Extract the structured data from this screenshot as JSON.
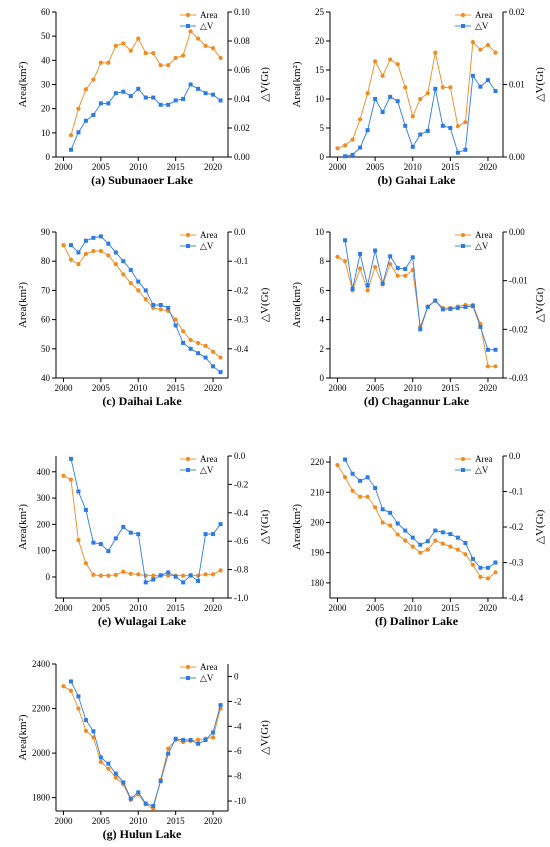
{
  "colors": {
    "area": "#F28A1F",
    "dv": "#2C7BE5",
    "axis": "#000000"
  },
  "chart_data": [
    {
      "type": "line",
      "title": "(a) Subunaoer Lake",
      "ylabel_left": "Area(km²)",
      "ylabel_right": "△V(Gt)",
      "xlim": [
        1999,
        2022
      ],
      "xticks": [
        2000,
        2005,
        2010,
        2015,
        2020
      ],
      "ylim_left": [
        0,
        60
      ],
      "yticks_left": [
        0,
        10,
        20,
        30,
        40,
        50,
        60
      ],
      "ylim_right": [
        0,
        0.1
      ],
      "yticks_right": [
        0.0,
        0.02,
        0.04,
        0.06,
        0.08,
        0.1
      ],
      "tick_decimals_right": 2,
      "legend": [
        "Area",
        "△V"
      ],
      "series": [
        {
          "name": "Area",
          "axis": "left",
          "x": [
            2001,
            2002,
            2003,
            2004,
            2005,
            2006,
            2007,
            2008,
            2009,
            2010,
            2011,
            2012,
            2013,
            2014,
            2015,
            2016,
            2017,
            2018,
            2019,
            2020,
            2021
          ],
          "values": [
            9,
            20,
            28,
            32,
            39,
            39,
            46,
            47,
            44,
            49,
            43,
            43,
            38,
            38,
            41,
            42,
            52,
            49,
            46,
            45,
            41
          ]
        },
        {
          "name": "△V",
          "axis": "right",
          "x": [
            2001,
            2002,
            2003,
            2004,
            2005,
            2006,
            2007,
            2008,
            2009,
            2010,
            2011,
            2012,
            2013,
            2014,
            2015,
            2016,
            2017,
            2018,
            2019,
            2020,
            2021
          ],
          "values": [
            0.005,
            0.017,
            0.025,
            0.029,
            0.037,
            0.037,
            0.044,
            0.045,
            0.042,
            0.047,
            0.041,
            0.041,
            0.036,
            0.036,
            0.039,
            0.04,
            0.05,
            0.047,
            0.044,
            0.043,
            0.039
          ]
        }
      ]
    },
    {
      "type": "line",
      "title": "(b) Gahai Lake",
      "ylabel_left": "Area(km²)",
      "ylabel_right": "△V(Gt)",
      "xlim": [
        1999,
        2022
      ],
      "xticks": [
        2000,
        2005,
        2010,
        2015,
        2020
      ],
      "ylim_left": [
        0,
        25
      ],
      "yticks_left": [
        0,
        5,
        10,
        15,
        20,
        25
      ],
      "ylim_right": [
        0,
        0.02
      ],
      "yticks_right": [
        0.0,
        0.01,
        0.02
      ],
      "tick_decimals_right": 2,
      "legend": [
        "Area",
        "△V"
      ],
      "series": [
        {
          "name": "Area",
          "axis": "left",
          "x": [
            2000,
            2001,
            2002,
            2003,
            2004,
            2005,
            2006,
            2007,
            2008,
            2009,
            2010,
            2011,
            2012,
            2013,
            2014,
            2015,
            2016,
            2017,
            2018,
            2019,
            2020,
            2021
          ],
          "values": [
            1.5,
            2,
            3,
            6.5,
            11,
            16.5,
            14,
            16.8,
            16,
            12,
            7,
            10,
            11,
            18,
            12,
            12,
            5.3,
            6,
            19.8,
            18.5,
            19.3,
            18
          ]
        },
        {
          "name": "△V",
          "axis": "right",
          "x": [
            2001,
            2002,
            2003,
            2004,
            2005,
            2006,
            2007,
            2008,
            2009,
            2010,
            2011,
            2012,
            2013,
            2014,
            2015,
            2016,
            2017,
            2018,
            2019,
            2020,
            2021
          ],
          "values": [
            0.0001,
            0.0003,
            0.0013,
            0.0037,
            0.008,
            0.0062,
            0.0083,
            0.0077,
            0.0043,
            0.0014,
            0.0031,
            0.0036,
            0.0094,
            0.0043,
            0.004,
            0.0006,
            0.001,
            0.0112,
            0.0097,
            0.0106,
            0.0091
          ]
        }
      ]
    },
    {
      "type": "line",
      "title": "(c) Daihai Lake",
      "ylabel_left": "Area(km²)",
      "ylabel_right": "△V(Gt)",
      "xlim": [
        1999,
        2022
      ],
      "xticks": [
        2000,
        2005,
        2010,
        2015,
        2020
      ],
      "ylim_left": [
        40,
        90
      ],
      "yticks_left": [
        40,
        50,
        60,
        70,
        80,
        90
      ],
      "ylim_right": [
        -0.5,
        0.0
      ],
      "yticks_right": [
        -0.4,
        -0.3,
        -0.2,
        -0.1,
        0.0
      ],
      "tick_decimals_right": 1,
      "legend": [
        "Area",
        "△V"
      ],
      "series": [
        {
          "name": "Area",
          "axis": "left",
          "x": [
            2000,
            2001,
            2002,
            2003,
            2004,
            2005,
            2006,
            2007,
            2008,
            2009,
            2010,
            2011,
            2012,
            2013,
            2014,
            2015,
            2016,
            2017,
            2018,
            2019,
            2020,
            2021
          ],
          "values": [
            85.5,
            80.5,
            79,
            82.5,
            83.5,
            83.5,
            82,
            79,
            75.5,
            72.5,
            70,
            67,
            64,
            63.5,
            63,
            60,
            56,
            53,
            52,
            51,
            49,
            47
          ]
        },
        {
          "name": "△V",
          "axis": "right",
          "x": [
            2001,
            2002,
            2003,
            2004,
            2005,
            2006,
            2007,
            2008,
            2009,
            2010,
            2011,
            2012,
            2013,
            2014,
            2015,
            2016,
            2017,
            2018,
            2019,
            2020,
            2021
          ],
          "values": [
            -0.045,
            -0.07,
            -0.03,
            -0.02,
            -0.015,
            -0.04,
            -0.07,
            -0.1,
            -0.13,
            -0.17,
            -0.2,
            -0.25,
            -0.25,
            -0.26,
            -0.32,
            -0.38,
            -0.4,
            -0.415,
            -0.43,
            -0.46,
            -0.48
          ]
        }
      ]
    },
    {
      "type": "line",
      "title": "(d) Chagannur Lake",
      "ylabel_left": "Area(km²)",
      "ylabel_right": "△V(Gt)",
      "xlim": [
        1999,
        2022
      ],
      "xticks": [
        2000,
        2005,
        2010,
        2015,
        2020
      ],
      "ylim_left": [
        0,
        10
      ],
      "yticks_left": [
        0,
        2,
        4,
        6,
        8,
        10
      ],
      "ylim_right": [
        -0.03,
        0.0
      ],
      "yticks_right": [
        -0.03,
        -0.02,
        -0.01,
        0.0
      ],
      "tick_decimals_right": 2,
      "legend": [
        "Area",
        "△V"
      ],
      "series": [
        {
          "name": "Area",
          "axis": "left",
          "x": [
            2000,
            2001,
            2002,
            2003,
            2004,
            2005,
            2006,
            2007,
            2008,
            2009,
            2010,
            2011,
            2012,
            2013,
            2014,
            2015,
            2016,
            2017,
            2018,
            2019,
            2020,
            2021
          ],
          "values": [
            8.3,
            8,
            6,
            7.5,
            6,
            7.6,
            6.4,
            7.8,
            7,
            7,
            7.4,
            3.5,
            4.9,
            5.3,
            4.8,
            4.8,
            4.9,
            5,
            5,
            3.7,
            0.8,
            0.8
          ]
        },
        {
          "name": "△V",
          "axis": "right",
          "x": [
            2001,
            2002,
            2003,
            2004,
            2005,
            2006,
            2007,
            2008,
            2009,
            2010,
            2011,
            2012,
            2013,
            2014,
            2015,
            2016,
            2017,
            2018,
            2019,
            2020,
            2021
          ],
          "values": [
            -0.0017,
            -0.0117,
            -0.0045,
            -0.011,
            -0.0038,
            -0.0106,
            -0.005,
            -0.0074,
            -0.0076,
            -0.0052,
            -0.02,
            -0.0154,
            -0.0141,
            -0.0159,
            -0.0158,
            -0.0156,
            -0.0154,
            -0.0152,
            -0.0195,
            -0.0242,
            -0.0242
          ]
        }
      ]
    },
    {
      "type": "line",
      "title": "(e) Wulagai Lake",
      "ylabel_left": "Area(km²)",
      "ylabel_right": "△V(Gt)",
      "xlim": [
        1999,
        2022
      ],
      "xticks": [
        2000,
        2005,
        2010,
        2015,
        2020
      ],
      "ylim_left": [
        -80,
        460
      ],
      "yticks_left": [
        0,
        100,
        200,
        300,
        400
      ],
      "ylim_right": [
        -1.0,
        0.0
      ],
      "yticks_right": [
        -1.0,
        -0.8,
        -0.6,
        -0.4,
        -0.2,
        0.0
      ],
      "tick_decimals_right": 1,
      "legend": [
        "Area",
        "△V"
      ],
      "series": [
        {
          "name": "Area",
          "axis": "left",
          "x": [
            2000,
            2001,
            2002,
            2003,
            2004,
            2005,
            2006,
            2007,
            2008,
            2009,
            2010,
            2011,
            2012,
            2013,
            2014,
            2015,
            2016,
            2017,
            2018,
            2019,
            2020,
            2021
          ],
          "values": [
            385,
            370,
            140,
            52,
            8,
            5,
            5,
            8,
            20,
            12,
            10,
            5,
            5,
            5,
            5,
            5,
            5,
            5,
            5,
            10,
            10,
            25
          ]
        },
        {
          "name": "△V",
          "axis": "right",
          "x": [
            2001,
            2002,
            2003,
            2004,
            2005,
            2006,
            2007,
            2008,
            2009,
            2010,
            2011,
            2012,
            2013,
            2014,
            2015,
            2016,
            2017,
            2018,
            2019,
            2020,
            2021
          ],
          "values": [
            -0.02,
            -0.25,
            -0.38,
            -0.61,
            -0.62,
            -0.67,
            -0.58,
            -0.5,
            -0.54,
            -0.55,
            -0.89,
            -0.87,
            -0.84,
            -0.82,
            -0.85,
            -0.89,
            -0.84,
            -0.88,
            -0.55,
            -0.55,
            -0.48
          ]
        }
      ]
    },
    {
      "type": "line",
      "title": "(f) Dalinor Lake",
      "ylabel_left": "Area(km²)",
      "ylabel_right": "△V(Gt)",
      "xlim": [
        1999,
        2022
      ],
      "xticks": [
        2000,
        2005,
        2010,
        2015,
        2020
      ],
      "ylim_left": [
        175,
        222
      ],
      "yticks_left": [
        180,
        190,
        200,
        210,
        220
      ],
      "ylim_right": [
        -0.4,
        0.0
      ],
      "yticks_right": [
        -0.4,
        -0.3,
        -0.2,
        -0.1,
        0.0
      ],
      "tick_decimals_right": 1,
      "legend": [
        "Area",
        "△V"
      ],
      "series": [
        {
          "name": "Area",
          "axis": "left",
          "x": [
            2000,
            2001,
            2002,
            2003,
            2004,
            2005,
            2006,
            2007,
            2008,
            2009,
            2010,
            2011,
            2012,
            2013,
            2014,
            2015,
            2016,
            2017,
            2018,
            2019,
            2020,
            2021
          ],
          "values": [
            219,
            215,
            210.5,
            208.5,
            208.5,
            205,
            200,
            199,
            196,
            194,
            192,
            190,
            191,
            194,
            193,
            192,
            191,
            189.5,
            186,
            182,
            181.5,
            183.5
          ]
        },
        {
          "name": "△V",
          "axis": "right",
          "x": [
            2001,
            2002,
            2003,
            2004,
            2005,
            2006,
            2007,
            2008,
            2009,
            2010,
            2011,
            2012,
            2013,
            2014,
            2015,
            2016,
            2017,
            2018,
            2019,
            2020,
            2021
          ],
          "values": [
            -0.01,
            -0.05,
            -0.07,
            -0.06,
            -0.09,
            -0.15,
            -0.16,
            -0.19,
            -0.21,
            -0.23,
            -0.25,
            -0.24,
            -0.21,
            -0.215,
            -0.22,
            -0.23,
            -0.245,
            -0.29,
            -0.315,
            -0.315,
            -0.3
          ]
        }
      ]
    },
    {
      "type": "line",
      "title": "(g) Hulun Lake",
      "ylabel_left": "Area(km²)",
      "ylabel_right": "△V(Gt)",
      "xlim": [
        1999,
        2022
      ],
      "xticks": [
        2000,
        2005,
        2010,
        2015,
        2020
      ],
      "ylim_left": [
        1740,
        2400
      ],
      "yticks_left": [
        1800,
        2000,
        2200,
        2400
      ],
      "ylim_right": [
        -10.8,
        1.0
      ],
      "yticks_right": [
        -10,
        -8,
        -6,
        -4,
        -2,
        0
      ],
      "tick_decimals_right": 0,
      "legend": [
        "Area",
        "△V"
      ],
      "series": [
        {
          "name": "Area",
          "axis": "left",
          "x": [
            2000,
            2001,
            2002,
            2003,
            2004,
            2005,
            2006,
            2007,
            2008,
            2009,
            2010,
            2011,
            2012,
            2013,
            2014,
            2015,
            2016,
            2017,
            2018,
            2019,
            2020,
            2021
          ],
          "values": [
            2300,
            2280,
            2200,
            2100,
            2070,
            1960,
            1930,
            1890,
            1860,
            1790,
            1815,
            1770,
            1750,
            1880,
            2020,
            2060,
            2050,
            2055,
            2060,
            2065,
            2070,
            2200
          ]
        },
        {
          "name": "△V",
          "axis": "right",
          "x": [
            2001,
            2002,
            2003,
            2004,
            2005,
            2006,
            2007,
            2008,
            2009,
            2010,
            2011,
            2012,
            2013,
            2014,
            2015,
            2016,
            2017,
            2018,
            2019,
            2020,
            2021
          ],
          "values": [
            -0.4,
            -1.6,
            -3.5,
            -4.4,
            -6.5,
            -7.0,
            -7.8,
            -8.5,
            -9.8,
            -9.3,
            -10.2,
            -10.4,
            -8.4,
            -6.2,
            -5.0,
            -5.1,
            -5.1,
            -5.4,
            -5.1,
            -4.5,
            -2.3
          ]
        }
      ]
    }
  ]
}
